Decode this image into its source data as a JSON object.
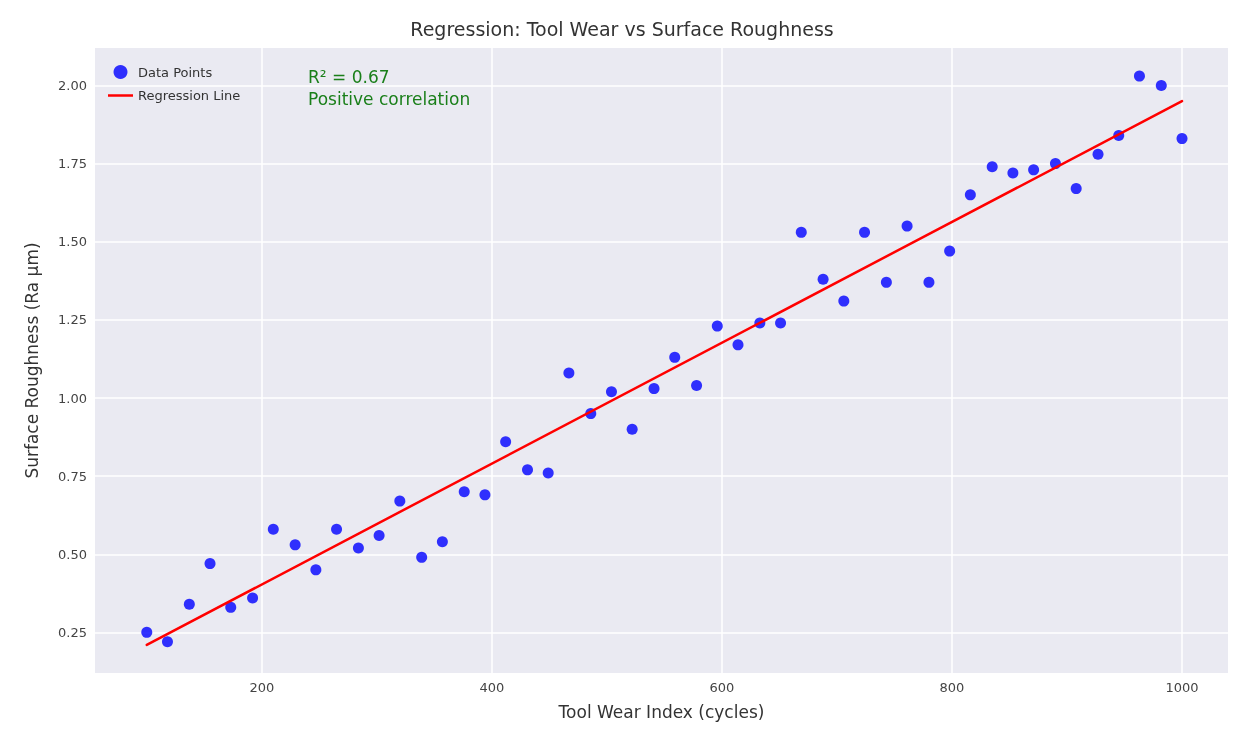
{
  "chart_data": {
    "type": "scatter",
    "title": "Regression: Tool Wear vs Surface Roughness",
    "xlabel": "Tool Wear Index (cycles)",
    "ylabel": "Surface Roughness (Ra µm)",
    "annotations": [
      "R² = 0.67",
      "Positive correlation"
    ],
    "series": [
      {
        "name": "Data Points",
        "color": "#0000ff",
        "marker": "circle",
        "x": [
          100,
          118,
          137,
          155,
          173,
          192,
          210,
          229,
          247,
          265,
          284,
          302,
          320,
          339,
          357,
          376,
          394,
          412,
          431,
          449,
          467,
          486,
          504,
          522,
          541,
          559,
          578,
          596,
          614,
          633,
          651,
          669,
          688,
          706,
          724,
          743,
          761,
          780,
          798,
          816,
          835,
          853,
          871,
          890,
          908,
          927,
          945,
          963,
          982,
          1000
        ],
        "values": [
          0.25,
          0.22,
          0.34,
          0.47,
          0.33,
          0.36,
          0.58,
          0.53,
          0.45,
          0.58,
          0.52,
          0.56,
          0.67,
          0.49,
          0.54,
          0.7,
          0.69,
          0.86,
          0.77,
          0.76,
          1.08,
          0.95,
          1.02,
          0.9,
          1.03,
          1.13,
          1.04,
          1.23,
          1.17,
          1.24,
          1.24,
          1.53,
          1.38,
          1.31,
          1.53,
          1.37,
          1.55,
          1.37,
          1.47,
          1.65,
          1.74,
          1.72,
          1.73,
          1.75,
          1.67,
          1.78,
          1.84,
          2.03,
          2.0,
          1.83
        ]
      },
      {
        "name": "Regression Line",
        "type": "line",
        "color": "#ff0000",
        "marker": "none",
        "line_style": "solid",
        "x": [
          100,
          1000
        ],
        "values": [
          0.21,
          1.95
        ]
      }
    ],
    "xlim": [
      55,
      1040
    ],
    "xticks": [
      200,
      400,
      600,
      800,
      1000
    ],
    "ylim": [
      0.12,
      2.12
    ],
    "yticks": [
      0.25,
      {
        "value": 0.5,
        "label": "0.50"
      },
      0.75,
      {
        "value": 1,
        "label": "1.00"
      },
      1.25,
      {
        "value": 1.5,
        "label": "1.50"
      },
      1.75,
      {
        "value": 2,
        "label": "2.00"
      }
    ],
    "grid": true,
    "legend": "top left"
  }
}
